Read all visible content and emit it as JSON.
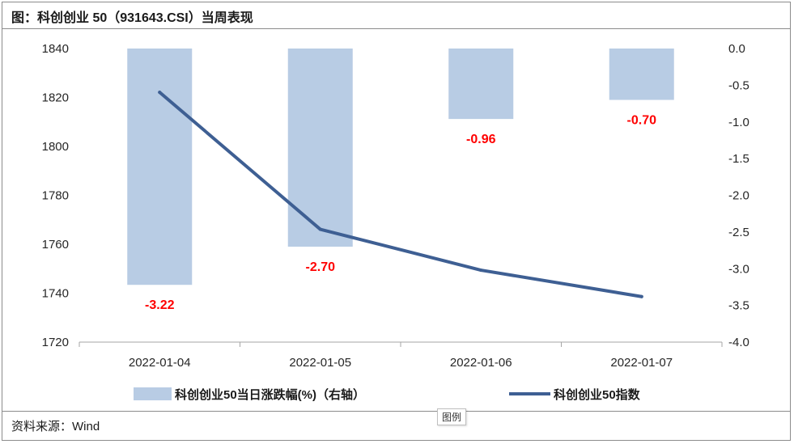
{
  "title": "图：科创创业 50（931643.CSI）当周表现",
  "source": "资料来源：Wind",
  "tooltip": "图例",
  "chart_data": {
    "type": "bar+line",
    "categories": [
      "2022-01-04",
      "2022-01-05",
      "2022-01-06",
      "2022-01-07"
    ],
    "bar_series": {
      "name": "科创创业50当日涨跌幅(%)（右轴）",
      "axis": "right",
      "values": [
        -3.22,
        -2.7,
        -0.96,
        -0.7
      ],
      "data_labels": [
        "-3.22",
        "-2.70",
        "-0.96",
        "-0.70"
      ],
      "color": "#b8cce4",
      "label_color": "#ff0000"
    },
    "line_series": {
      "name": "科创创业50指数",
      "axis": "left",
      "values": [
        1822.1,
        1766.1,
        1749.4,
        1738.6
      ],
      "color": "#3e5f93"
    },
    "y_left": {
      "lim": [
        1720,
        1840
      ],
      "ticks": [
        "1720",
        "1740",
        "1760",
        "1780",
        "1800",
        "1820",
        "1840"
      ]
    },
    "y_right": {
      "lim": [
        -4.0,
        0.0
      ],
      "ticks": [
        "-4.0",
        "-3.5",
        "-3.0",
        "-2.5",
        "-2.0",
        "-1.5",
        "-1.0",
        "-0.5",
        "0.0"
      ]
    },
    "grid": false,
    "legend_position": "bottom"
  }
}
